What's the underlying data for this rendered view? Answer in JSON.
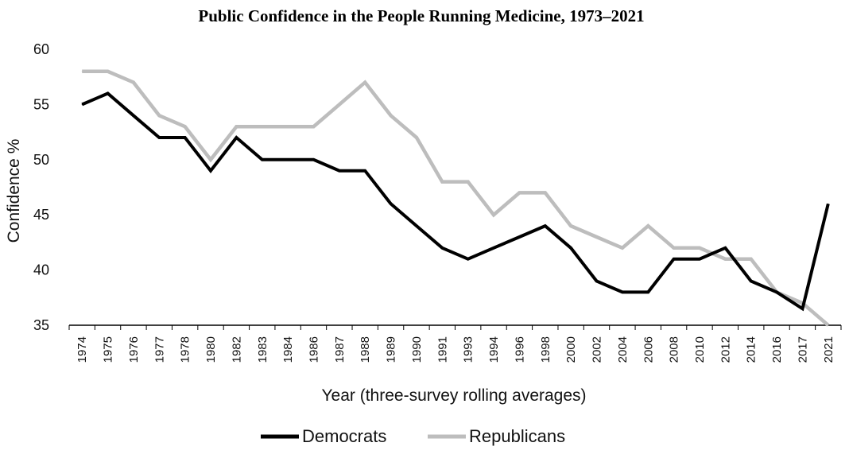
{
  "chart_data": {
    "type": "line",
    "title": "Public Confidence in the People Running Medicine, 1973–2021",
    "xlabel": "Year (three-survey rolling averages)",
    "ylabel": "Confidence %",
    "ylim": [
      35,
      60
    ],
    "yticks": [
      "35",
      "40",
      "45",
      "50",
      "55",
      "60"
    ],
    "categories": [
      "1974",
      "1975",
      "1976",
      "1977",
      "1978",
      "1980",
      "1982",
      "1983",
      "1984",
      "1986",
      "1987",
      "1988",
      "1989",
      "1990",
      "1991",
      "1993",
      "1994",
      "1996",
      "1998",
      "2000",
      "2002",
      "2004",
      "2006",
      "2008",
      "2010",
      "2012",
      "2014",
      "2016",
      "2017",
      "2021"
    ],
    "legend_position": "bottom",
    "grid": false,
    "series": [
      {
        "name": "Democrats",
        "color": "#000000",
        "values": [
          55,
          56,
          54,
          52,
          52,
          49,
          52,
          50,
          50,
          50,
          49,
          49,
          46,
          44,
          42,
          41,
          42,
          43,
          44,
          42,
          39,
          38,
          38,
          41,
          41,
          42,
          39,
          38,
          36.5,
          46
        ]
      },
      {
        "name": "Republicans",
        "color": "#bdbdbd",
        "values": [
          58,
          58,
          57,
          54,
          53,
          50,
          53,
          53,
          53,
          53,
          55,
          57,
          54,
          52,
          48,
          48,
          45,
          47,
          47,
          44,
          43,
          42,
          44,
          42,
          42,
          41,
          41,
          38,
          37,
          35
        ]
      }
    ]
  }
}
